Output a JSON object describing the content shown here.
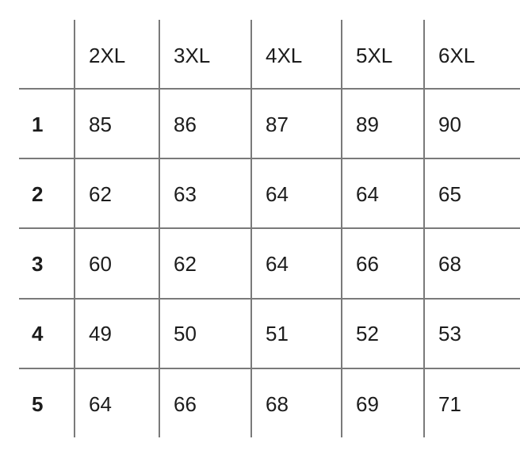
{
  "table": {
    "columns": [
      "",
      "2XL",
      "3XL",
      "4XL",
      "5XL",
      "6XL"
    ],
    "rows": [
      {
        "label": "1",
        "values": [
          "85",
          "86",
          "87",
          "89",
          "90"
        ]
      },
      {
        "label": "2",
        "values": [
          "62",
          "63",
          "64",
          "64",
          "65"
        ]
      },
      {
        "label": "3",
        "values": [
          "60",
          "62",
          "64",
          "66",
          "68"
        ]
      },
      {
        "label": "4",
        "values": [
          "49",
          "50",
          "51",
          "52",
          "53"
        ]
      },
      {
        "label": "5",
        "values": [
          "64",
          "66",
          "68",
          "69",
          "71"
        ]
      }
    ],
    "line_color": "#7a7a7a"
  }
}
